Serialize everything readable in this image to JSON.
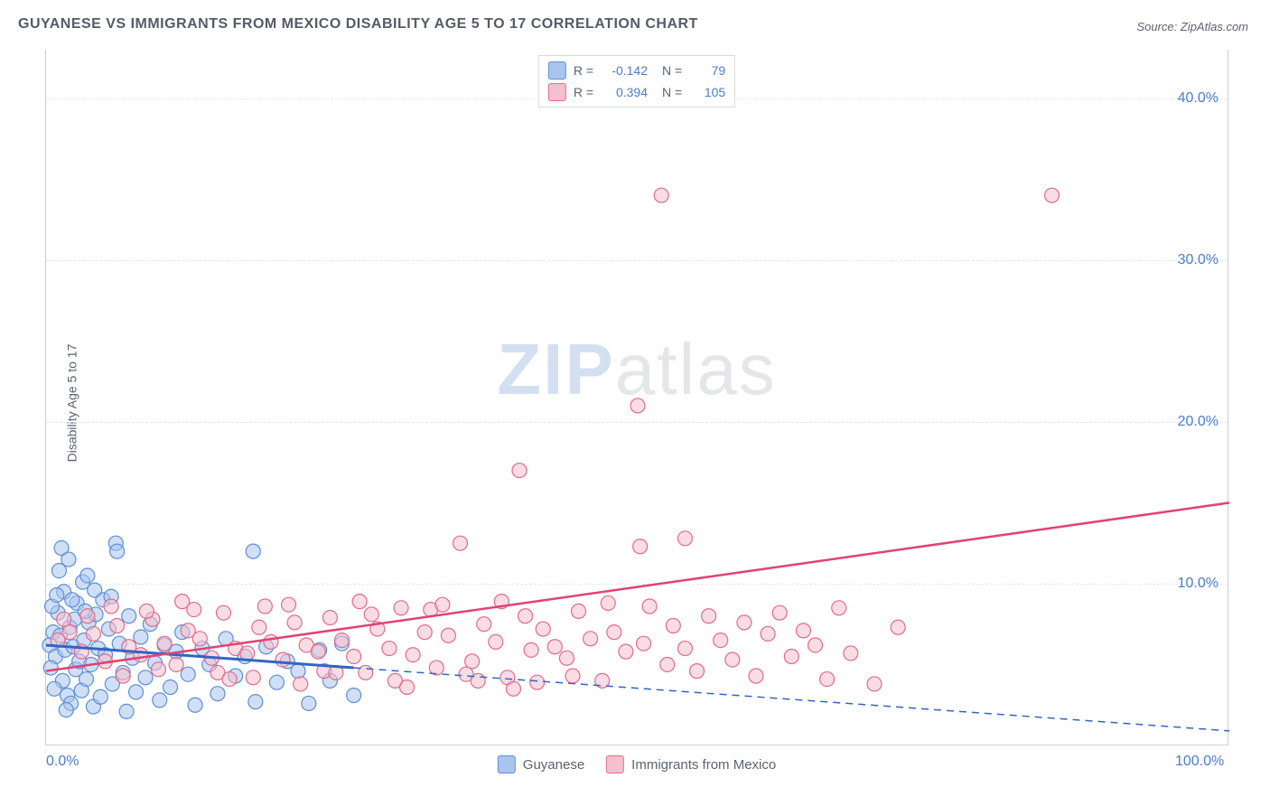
{
  "title": "GUYANESE VS IMMIGRANTS FROM MEXICO DISABILITY AGE 5 TO 17 CORRELATION CHART",
  "source": "Source: ZipAtlas.com",
  "ylabel": "Disability Age 5 to 17",
  "watermark_a": "ZIP",
  "watermark_b": "atlas",
  "chart": {
    "type": "scatter",
    "xlim": [
      0,
      100
    ],
    "ylim": [
      0,
      43
    ],
    "x_ticks": [
      0,
      100
    ],
    "x_tick_labels": [
      "0.0%",
      "100.0%"
    ],
    "y_ticks": [
      10,
      20,
      30,
      40
    ],
    "y_tick_labels": [
      "10.0%",
      "20.0%",
      "30.0%",
      "40.0%"
    ],
    "background_color": "#ffffff",
    "grid_color": "#e6e8ec",
    "axis_color": "#c9ced6",
    "tick_label_color": "#4a7ccc",
    "label_fontsize": 14,
    "tick_fontsize": 16,
    "title_fontsize": 16,
    "marker_radius": 8,
    "marker_opacity": 0.55,
    "series": [
      {
        "name": "Guyanese",
        "color_fill": "#a9c5ee",
        "color_stroke": "#5c8fd6",
        "R": "-0.142",
        "N": "79",
        "trend": {
          "x1": 0,
          "y1": 6.2,
          "x2": 26,
          "y2": 4.8,
          "color": "#2f66c4",
          "width": 3,
          "dash": false
        },
        "trend_ext": {
          "x1": 26,
          "y1": 4.8,
          "x2": 100,
          "y2": 0.9,
          "color": "#2f66c4",
          "width": 1.5,
          "dash": true
        },
        "points": [
          [
            0.3,
            6.2
          ],
          [
            0.6,
            7.0
          ],
          [
            0.8,
            5.5
          ],
          [
            1.0,
            8.2
          ],
          [
            1.2,
            6.8
          ],
          [
            1.4,
            4.0
          ],
          [
            1.5,
            9.5
          ],
          [
            1.6,
            5.9
          ],
          [
            1.8,
            3.1
          ],
          [
            2.0,
            7.3
          ],
          [
            2.1,
            2.6
          ],
          [
            2.3,
            6.1
          ],
          [
            2.5,
            4.7
          ],
          [
            2.6,
            8.8
          ],
          [
            2.8,
            5.2
          ],
          [
            3.0,
            3.4
          ],
          [
            3.1,
            10.1
          ],
          [
            3.2,
            6.5
          ],
          [
            3.4,
            4.1
          ],
          [
            3.6,
            7.6
          ],
          [
            3.8,
            5.0
          ],
          [
            4.0,
            2.4
          ],
          [
            4.2,
            8.1
          ],
          [
            4.4,
            6.0
          ],
          [
            4.6,
            3.0
          ],
          [
            4.8,
            9.0
          ],
          [
            5.0,
            5.6
          ],
          [
            5.3,
            7.2
          ],
          [
            5.6,
            3.8
          ],
          [
            5.9,
            12.5
          ],
          [
            6.0,
            12.0
          ],
          [
            6.2,
            6.3
          ],
          [
            6.5,
            4.5
          ],
          [
            6.8,
            2.1
          ],
          [
            7.0,
            8.0
          ],
          [
            7.3,
            5.4
          ],
          [
            7.6,
            3.3
          ],
          [
            8.0,
            6.7
          ],
          [
            8.4,
            4.2
          ],
          [
            8.8,
            7.5
          ],
          [
            9.2,
            5.1
          ],
          [
            9.6,
            2.8
          ],
          [
            10.0,
            6.2
          ],
          [
            10.5,
            3.6
          ],
          [
            11.0,
            5.8
          ],
          [
            11.5,
            7.0
          ],
          [
            12.0,
            4.4
          ],
          [
            12.6,
            2.5
          ],
          [
            13.2,
            6.0
          ],
          [
            13.8,
            5.0
          ],
          [
            14.5,
            3.2
          ],
          [
            15.2,
            6.6
          ],
          [
            16.0,
            4.3
          ],
          [
            16.8,
            5.5
          ],
          [
            17.7,
            2.7
          ],
          [
            17.5,
            12.0
          ],
          [
            18.6,
            6.1
          ],
          [
            19.5,
            3.9
          ],
          [
            20.4,
            5.2
          ],
          [
            21.3,
            4.6
          ],
          [
            22.2,
            2.6
          ],
          [
            23.1,
            5.9
          ],
          [
            24.0,
            4.0
          ],
          [
            25.0,
            6.3
          ],
          [
            26.0,
            3.1
          ],
          [
            1.1,
            10.8
          ],
          [
            1.3,
            12.2
          ],
          [
            1.9,
            11.5
          ],
          [
            0.5,
            8.6
          ],
          [
            0.9,
            9.3
          ],
          [
            2.2,
            9.0
          ],
          [
            3.5,
            10.5
          ],
          [
            4.1,
            9.6
          ],
          [
            5.5,
            9.2
          ],
          [
            0.4,
            4.8
          ],
          [
            0.7,
            3.5
          ],
          [
            1.7,
            2.2
          ],
          [
            2.4,
            7.8
          ],
          [
            3.3,
            8.3
          ]
        ]
      },
      {
        "name": "Immigrants from Mexico",
        "color_fill": "#f4c0cd",
        "color_stroke": "#e46a8c",
        "R": "0.394",
        "N": "105",
        "trend": {
          "x1": 0,
          "y1": 4.6,
          "x2": 100,
          "y2": 15.0,
          "color": "#e24272",
          "width": 2.5,
          "dash": false
        },
        "points": [
          [
            1.0,
            6.5
          ],
          [
            2.0,
            7.0
          ],
          [
            3.0,
            5.8
          ],
          [
            4.0,
            6.9
          ],
          [
            5.0,
            5.2
          ],
          [
            6.0,
            7.4
          ],
          [
            7.0,
            6.1
          ],
          [
            8.0,
            5.6
          ],
          [
            9.0,
            7.8
          ],
          [
            10.0,
            6.3
          ],
          [
            11.0,
            5.0
          ],
          [
            12.0,
            7.1
          ],
          [
            13.0,
            6.6
          ],
          [
            14.0,
            5.4
          ],
          [
            15.0,
            8.2
          ],
          [
            16.0,
            6.0
          ],
          [
            17.0,
            5.7
          ],
          [
            18.0,
            7.3
          ],
          [
            19.0,
            6.4
          ],
          [
            20.0,
            5.3
          ],
          [
            21.0,
            7.6
          ],
          [
            22.0,
            6.2
          ],
          [
            23.0,
            5.8
          ],
          [
            24.0,
            7.9
          ],
          [
            25.0,
            6.5
          ],
          [
            26.0,
            5.5
          ],
          [
            27.0,
            4.5
          ],
          [
            28.0,
            7.2
          ],
          [
            29.0,
            6.0
          ],
          [
            30.0,
            8.5
          ],
          [
            31.0,
            5.6
          ],
          [
            32.0,
            7.0
          ],
          [
            33.0,
            4.8
          ],
          [
            34.0,
            6.8
          ],
          [
            35.0,
            12.5
          ],
          [
            36.0,
            5.2
          ],
          [
            37.0,
            7.5
          ],
          [
            38.0,
            6.4
          ],
          [
            39.0,
            4.2
          ],
          [
            40.0,
            17.0
          ],
          [
            40.5,
            8.0
          ],
          [
            41.0,
            5.9
          ],
          [
            42.0,
            7.2
          ],
          [
            43.0,
            6.1
          ],
          [
            44.0,
            5.4
          ],
          [
            45.0,
            8.3
          ],
          [
            46.0,
            6.6
          ],
          [
            47.0,
            4.0
          ],
          [
            48.0,
            7.0
          ],
          [
            49.0,
            5.8
          ],
          [
            50.0,
            21.0
          ],
          [
            50.2,
            12.3
          ],
          [
            50.5,
            6.3
          ],
          [
            51.0,
            8.6
          ],
          [
            52.0,
            34.0
          ],
          [
            52.5,
            5.0
          ],
          [
            53.0,
            7.4
          ],
          [
            54.0,
            6.0
          ],
          [
            54.0,
            12.8
          ],
          [
            55.0,
            4.6
          ],
          [
            56.0,
            8.0
          ],
          [
            57.0,
            6.5
          ],
          [
            58.0,
            5.3
          ],
          [
            59.0,
            7.6
          ],
          [
            60.0,
            4.3
          ],
          [
            61.0,
            6.9
          ],
          [
            62.0,
            8.2
          ],
          [
            63.0,
            5.5
          ],
          [
            64.0,
            7.1
          ],
          [
            65.0,
            6.2
          ],
          [
            66.0,
            4.1
          ],
          [
            67.0,
            8.5
          ],
          [
            68.0,
            5.7
          ],
          [
            70.0,
            3.8
          ],
          [
            72.0,
            7.3
          ],
          [
            85.0,
            34.0
          ],
          [
            3.5,
            8.0
          ],
          [
            5.5,
            8.6
          ],
          [
            8.5,
            8.3
          ],
          [
            11.5,
            8.9
          ],
          [
            14.5,
            4.5
          ],
          [
            17.5,
            4.2
          ],
          [
            20.5,
            8.7
          ],
          [
            23.5,
            4.6
          ],
          [
            26.5,
            8.9
          ],
          [
            29.5,
            4.0
          ],
          [
            32.5,
            8.4
          ],
          [
            35.5,
            4.4
          ],
          [
            38.5,
            8.9
          ],
          [
            41.5,
            3.9
          ],
          [
            44.5,
            4.3
          ],
          [
            47.5,
            8.8
          ],
          [
            1.5,
            7.8
          ],
          [
            6.5,
            4.3
          ],
          [
            9.5,
            4.7
          ],
          [
            12.5,
            8.4
          ],
          [
            15.5,
            4.1
          ],
          [
            18.5,
            8.6
          ],
          [
            21.5,
            3.8
          ],
          [
            24.5,
            4.5
          ],
          [
            27.5,
            8.1
          ],
          [
            30.5,
            3.6
          ],
          [
            33.5,
            8.7
          ],
          [
            36.5,
            4.0
          ],
          [
            39.5,
            3.5
          ]
        ]
      }
    ],
    "legend_bottom": [
      {
        "label": "Guyanese",
        "fill": "#a9c5ee",
        "stroke": "#5c8fd6"
      },
      {
        "label": "Immigrants from Mexico",
        "fill": "#f4c0cd",
        "stroke": "#e46a8c"
      }
    ]
  }
}
